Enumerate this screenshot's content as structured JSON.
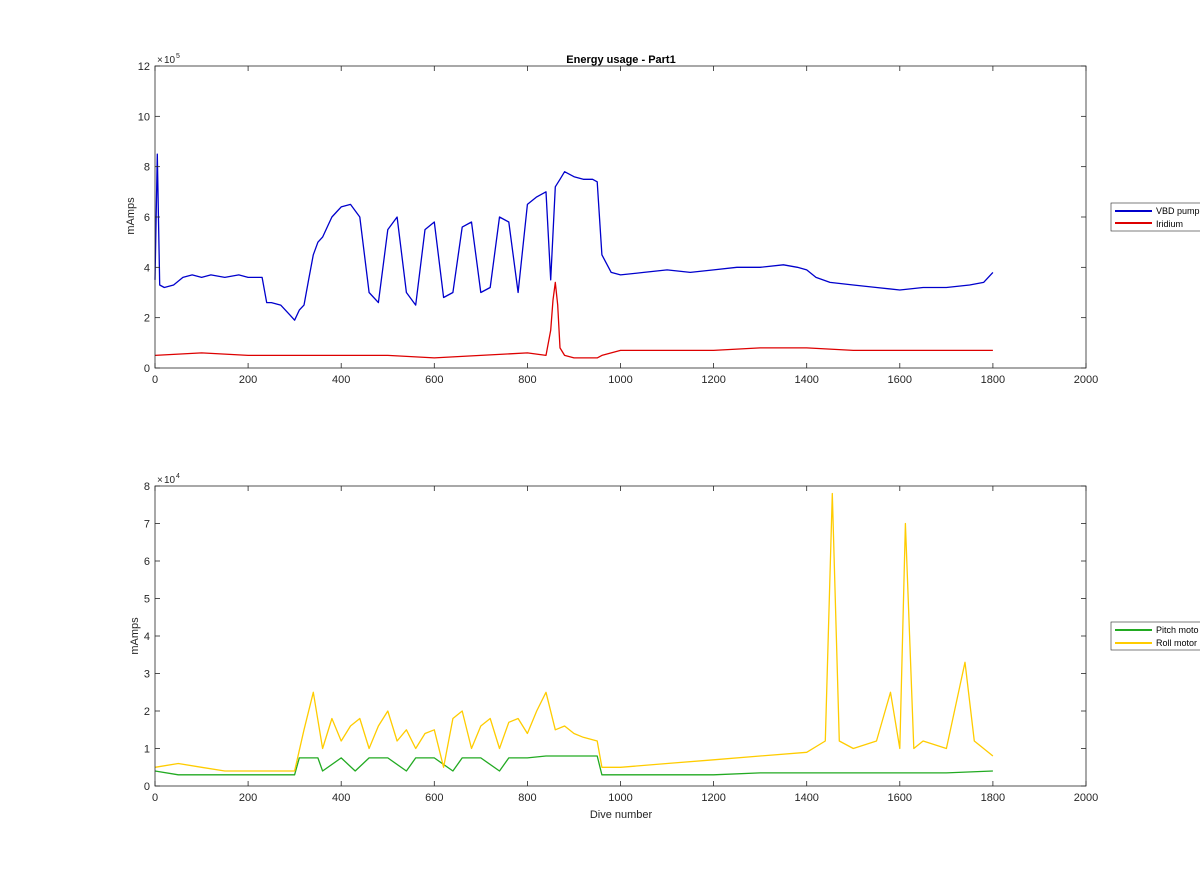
{
  "chart_data": [
    {
      "type": "line",
      "title": "Energy usage - Part1",
      "xlabel": "",
      "ylabel": "mAmps",
      "xlim": [
        0,
        2000
      ],
      "ylim": [
        0,
        12
      ],
      "y_exponent": "10",
      "y_exponent_power": "5",
      "x_ticks": [
        "0",
        "200",
        "400",
        "600",
        "800",
        "1000",
        "1200",
        "1400",
        "1600",
        "1800",
        "2000"
      ],
      "y_ticks": [
        "0",
        "2",
        "4",
        "6",
        "8",
        "10",
        "12"
      ],
      "legend_position": "outside-right",
      "series": [
        {
          "name": "VBD pump",
          "color": "#0000cc",
          "x": [
            0,
            5,
            10,
            20,
            40,
            60,
            80,
            100,
            120,
            150,
            180,
            200,
            230,
            240,
            250,
            270,
            290,
            300,
            310,
            320,
            330,
            340,
            350,
            360,
            370,
            380,
            390,
            400,
            420,
            440,
            460,
            480,
            500,
            520,
            540,
            560,
            580,
            600,
            620,
            640,
            660,
            680,
            700,
            720,
            740,
            760,
            780,
            800,
            820,
            840,
            850,
            860,
            870,
            880,
            900,
            920,
            940,
            950,
            960,
            980,
            1000,
            1050,
            1100,
            1150,
            1200,
            1250,
            1300,
            1350,
            1380,
            1400,
            1420,
            1450,
            1500,
            1550,
            1600,
            1650,
            1700,
            1750,
            1780,
            1800
          ],
          "y": [
            3.5,
            8.5,
            3.3,
            3.2,
            3.3,
            3.6,
            3.7,
            3.6,
            3.7,
            3.6,
            3.7,
            3.6,
            3.6,
            2.6,
            2.6,
            2.5,
            2.1,
            1.9,
            2.3,
            2.5,
            3.5,
            4.5,
            5.0,
            5.2,
            5.6,
            6.0,
            6.2,
            6.4,
            6.5,
            6.0,
            3.0,
            2.6,
            5.5,
            6.0,
            3.0,
            2.5,
            5.5,
            5.8,
            2.8,
            3.0,
            5.6,
            5.8,
            3.0,
            3.2,
            6.0,
            5.8,
            3.0,
            6.5,
            6.8,
            7.0,
            3.5,
            7.2,
            7.5,
            7.8,
            7.6,
            7.5,
            7.5,
            7.4,
            4.5,
            3.8,
            3.7,
            3.8,
            3.9,
            3.8,
            3.9,
            4.0,
            4.0,
            4.1,
            4.0,
            3.9,
            3.6,
            3.4,
            3.3,
            3.2,
            3.1,
            3.2,
            3.2,
            3.3,
            3.4,
            3.8
          ]
        },
        {
          "name": "Iridium",
          "color": "#dd0000",
          "x": [
            0,
            100,
            200,
            300,
            350,
            400,
            500,
            600,
            700,
            800,
            840,
            850,
            855,
            860,
            865,
            870,
            880,
            900,
            950,
            960,
            1000,
            1100,
            1200,
            1300,
            1400,
            1500,
            1600,
            1700,
            1800
          ],
          "y": [
            0.5,
            0.6,
            0.5,
            0.5,
            0.5,
            0.5,
            0.5,
            0.4,
            0.5,
            0.6,
            0.5,
            1.5,
            2.7,
            3.4,
            2.5,
            0.8,
            0.5,
            0.4,
            0.4,
            0.5,
            0.7,
            0.7,
            0.7,
            0.8,
            0.8,
            0.7,
            0.7,
            0.7,
            0.7
          ]
        }
      ]
    },
    {
      "type": "line",
      "title": "",
      "xlabel": "Dive number",
      "ylabel": "mAmps",
      "xlim": [
        0,
        2000
      ],
      "ylim": [
        0,
        8
      ],
      "y_exponent": "10",
      "y_exponent_power": "4",
      "x_ticks": [
        "0",
        "200",
        "400",
        "600",
        "800",
        "1000",
        "1200",
        "1400",
        "1600",
        "1800",
        "2000"
      ],
      "y_ticks": [
        "0",
        "1",
        "2",
        "3",
        "4",
        "5",
        "6",
        "7",
        "8"
      ],
      "legend_position": "outside-right",
      "series": [
        {
          "name": "Pitch moto",
          "color": "#22aa22",
          "x": [
            0,
            50,
            100,
            150,
            200,
            250,
            300,
            310,
            350,
            360,
            400,
            430,
            460,
            500,
            540,
            560,
            600,
            640,
            660,
            700,
            740,
            760,
            800,
            840,
            860,
            900,
            950,
            960,
            1000,
            1100,
            1200,
            1300,
            1400,
            1500,
            1600,
            1700,
            1800
          ],
          "y": [
            0.4,
            0.3,
            0.3,
            0.3,
            0.3,
            0.3,
            0.3,
            0.75,
            0.75,
            0.4,
            0.75,
            0.4,
            0.75,
            0.75,
            0.4,
            0.75,
            0.75,
            0.4,
            0.75,
            0.75,
            0.4,
            0.75,
            0.75,
            0.8,
            0.8,
            0.8,
            0.8,
            0.3,
            0.3,
            0.3,
            0.3,
            0.35,
            0.35,
            0.35,
            0.35,
            0.35,
            0.4
          ]
        },
        {
          "name": "Roll motor",
          "color": "#ffcc00",
          "x": [
            0,
            50,
            100,
            150,
            200,
            250,
            300,
            320,
            340,
            360,
            380,
            400,
            420,
            440,
            460,
            480,
            500,
            520,
            540,
            560,
            580,
            600,
            620,
            640,
            660,
            680,
            700,
            720,
            740,
            760,
            780,
            800,
            820,
            840,
            860,
            880,
            900,
            920,
            950,
            960,
            1000,
            1100,
            1200,
            1300,
            1400,
            1440,
            1455,
            1470,
            1500,
            1550,
            1580,
            1600,
            1612,
            1630,
            1650,
            1700,
            1740,
            1760,
            1780,
            1800
          ],
          "y": [
            0.5,
            0.6,
            0.5,
            0.4,
            0.4,
            0.4,
            0.4,
            1.5,
            2.5,
            1.0,
            1.8,
            1.2,
            1.6,
            1.8,
            1.0,
            1.6,
            2.0,
            1.2,
            1.5,
            1.0,
            1.4,
            1.5,
            0.5,
            1.8,
            2.0,
            1.0,
            1.6,
            1.8,
            1.0,
            1.7,
            1.8,
            1.4,
            2.0,
            2.5,
            1.5,
            1.6,
            1.4,
            1.3,
            1.2,
            0.5,
            0.5,
            0.6,
            0.7,
            0.8,
            0.9,
            1.2,
            7.8,
            1.2,
            1.0,
            1.2,
            2.5,
            1.0,
            7.0,
            1.0,
            1.2,
            1.0,
            3.3,
            1.2,
            1.0,
            0.8
          ]
        }
      ]
    }
  ]
}
